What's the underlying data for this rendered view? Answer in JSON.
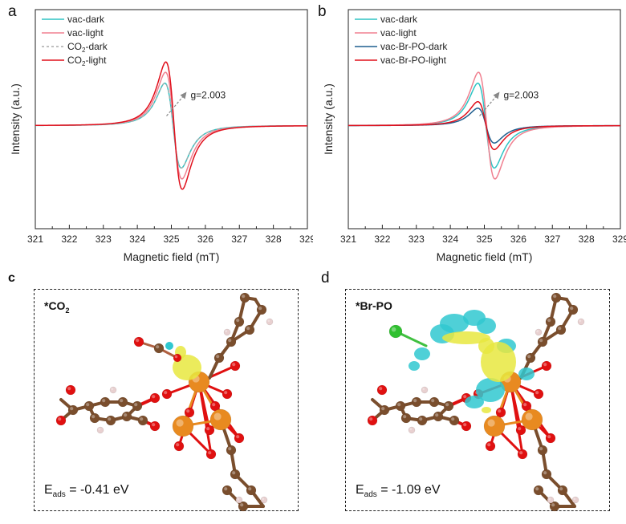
{
  "panels": {
    "a": {
      "letter": "a"
    },
    "b": {
      "letter": "b"
    },
    "c": {
      "letter": "c",
      "title_main": "*CO",
      "title_sub": "2",
      "energy_label": "E",
      "energy_sub": "ads",
      "energy_value": "= -0.41 eV"
    },
    "d": {
      "letter": "d",
      "title_main": "*Br-PO",
      "title_sub": "",
      "energy_label": "E",
      "energy_sub": "ads",
      "energy_value": "= -1.09 eV"
    }
  },
  "chart_data": [
    {
      "type": "line",
      "panel": "a",
      "title": "",
      "xlabel": "Magnetic field (mT)",
      "ylabel": "Intensity (a.u.)",
      "xlim": [
        321,
        329
      ],
      "ylim": [
        -1.6,
        1.8
      ],
      "xticks": [
        "321",
        "322",
        "323",
        "324",
        "325",
        "326",
        "327",
        "328",
        "329"
      ],
      "grid": false,
      "legend_position": "top-left",
      "annotation": {
        "text": "g=2.003",
        "x": 325.0,
        "y": 0.15
      },
      "series": [
        {
          "name": "vac-dark",
          "legend_main": "vac-dark",
          "legend_sub": "",
          "legend_suffix": "",
          "color": "#2ec4c4",
          "dash": false,
          "center": 325.05,
          "amplitude": 0.78
        },
        {
          "name": "vac-light",
          "legend_main": "vac-light",
          "legend_sub": "",
          "legend_suffix": "",
          "color": "#f08090",
          "dash": false,
          "center": 325.07,
          "amplitude": 0.98
        },
        {
          "name": "CO2-dark",
          "legend_main": "CO",
          "legend_sub": "2",
          "legend_suffix": "-dark",
          "color": "#aaaaaa",
          "dash": true,
          "center": 325.05,
          "amplitude": 0.78
        },
        {
          "name": "CO2-light",
          "legend_main": "CO",
          "legend_sub": "2",
          "legend_suffix": "-light",
          "color": "#e0101c",
          "dash": false,
          "center": 325.08,
          "amplitude": 1.17
        }
      ]
    },
    {
      "type": "line",
      "panel": "b",
      "title": "",
      "xlabel": "Magnetic field (mT)",
      "ylabel": "Intensity (a.u.)",
      "xlim": [
        321,
        329
      ],
      "ylim": [
        -1.6,
        1.8
      ],
      "xticks": [
        "321",
        "322",
        "323",
        "324",
        "325",
        "326",
        "327",
        "328",
        "329"
      ],
      "grid": false,
      "legend_position": "top-left",
      "annotation": {
        "text": "g=2.003",
        "x": 325.0,
        "y": 0.15
      },
      "series": [
        {
          "name": "vac-dark",
          "legend_main": "vac-dark",
          "legend_sub": "",
          "legend_suffix": "",
          "color": "#2ec4c4",
          "dash": false,
          "center": 325.05,
          "amplitude": 0.78
        },
        {
          "name": "vac-light",
          "legend_main": "vac-light",
          "legend_sub": "",
          "legend_suffix": "",
          "color": "#f08090",
          "dash": false,
          "center": 325.07,
          "amplitude": 0.98
        },
        {
          "name": "vac-Br-PO-dark",
          "legend_main": "vac-Br-PO-dark",
          "legend_sub": "",
          "legend_suffix": "",
          "color": "#1f5f8f",
          "dash": false,
          "center": 325.05,
          "amplitude": 0.32
        },
        {
          "name": "vac-Br-PO-light",
          "legend_main": "vac-Br-PO-light",
          "legend_sub": "",
          "legend_suffix": "",
          "color": "#e0101c",
          "dash": false,
          "center": 325.05,
          "amplitude": 0.44
        }
      ]
    }
  ]
}
